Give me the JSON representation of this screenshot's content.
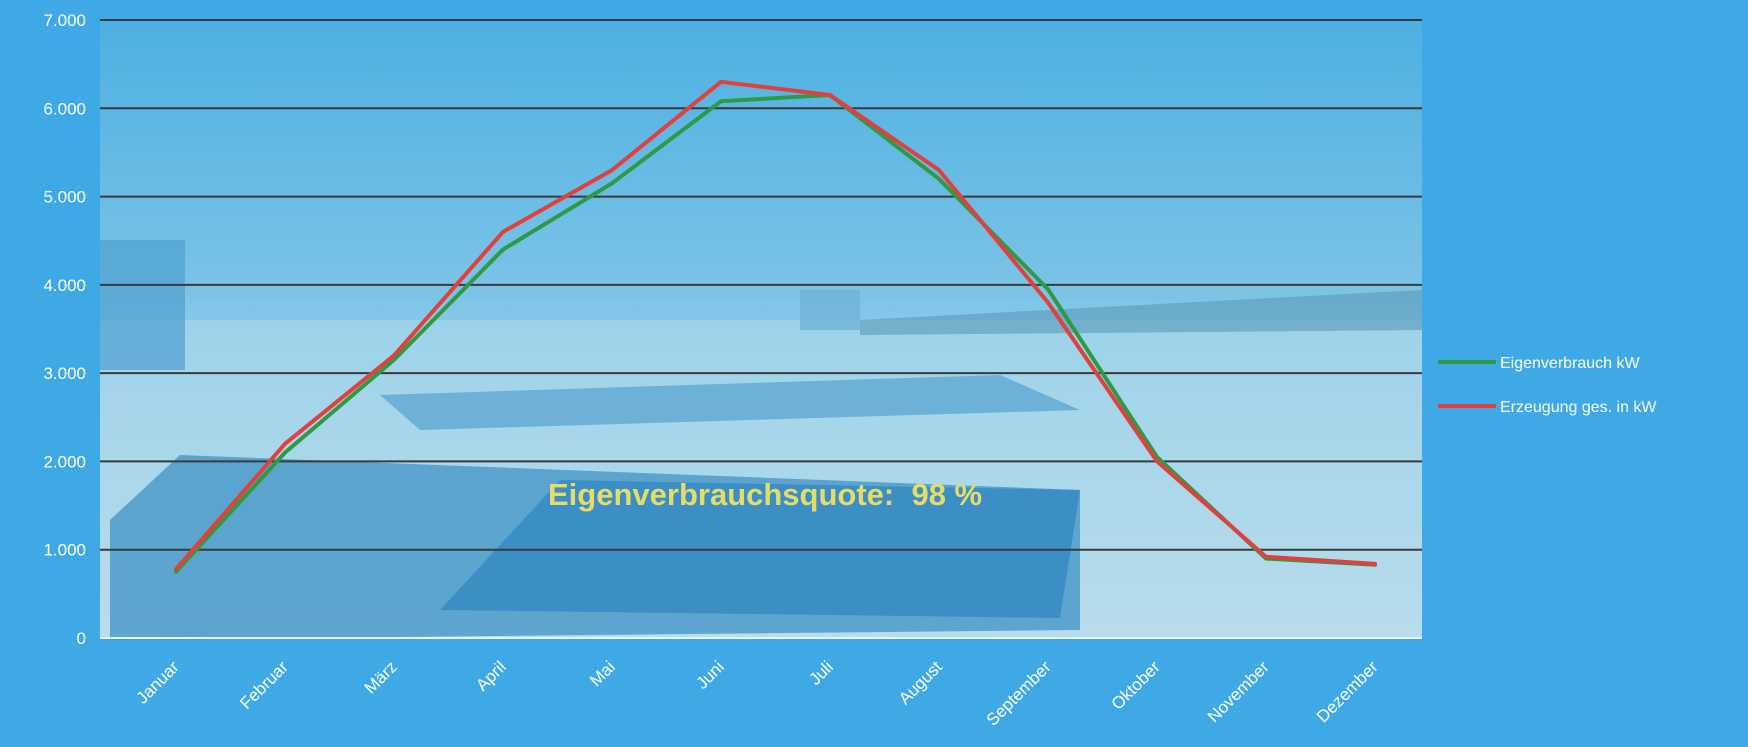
{
  "chart_data": {
    "type": "line",
    "title": "",
    "xlabel": "",
    "ylabel": "",
    "categories": [
      "Januar",
      "Februar",
      "März",
      "April",
      "Mai",
      "Juni",
      "Juli",
      "August",
      "September",
      "Oktober",
      "November",
      "Dezember"
    ],
    "series": [
      {
        "name": "Eigenverbrauch kW",
        "color": "#2f9a45",
        "values": [
          750,
          2100,
          3150,
          4400,
          5150,
          6080,
          6150,
          5200,
          3950,
          2050,
          900,
          830
        ]
      },
      {
        "name": "Erzeugung ges. in kW",
        "color": "#e0403e",
        "values": [
          780,
          2200,
          3200,
          4600,
          5300,
          6300,
          6150,
          5300,
          3800,
          2000,
          920,
          840
        ]
      }
    ],
    "ylim": [
      0,
      7000
    ],
    "y_ticks": [
      0,
      1000,
      2000,
      3000,
      4000,
      5000,
      6000,
      7000
    ],
    "y_tick_labels": [
      "0",
      "1.000",
      "2.000",
      "3.000",
      "4.000",
      "5.000",
      "6.000",
      "7.000"
    ],
    "grid": true,
    "legend_position": "right",
    "annotation": "Eigenverbrauchsquote:  98 %"
  }
}
